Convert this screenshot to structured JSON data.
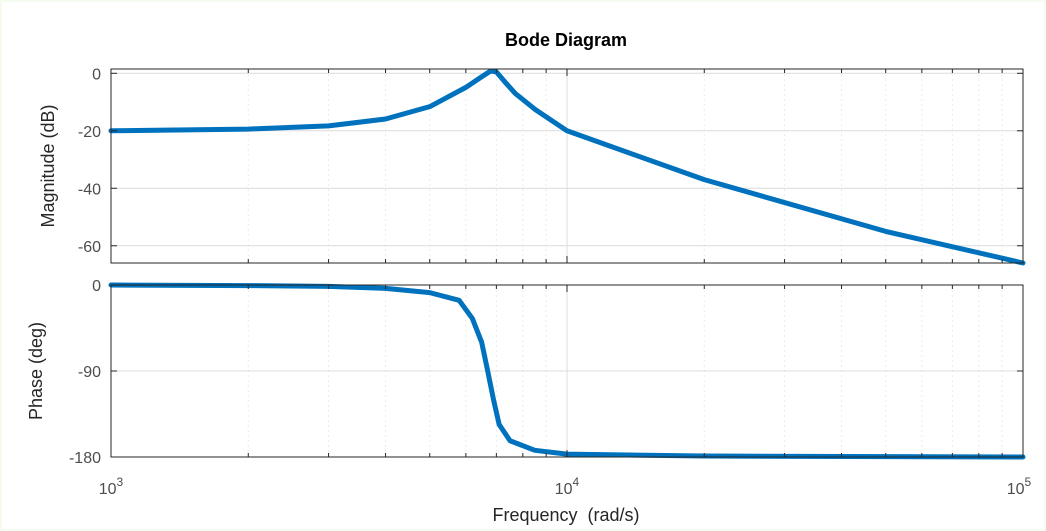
{
  "chart_data": {
    "type": "line",
    "title": "Bode Diagram",
    "xlabel": "Frequency  (rad/s)",
    "xscale": "log",
    "xlim": [
      1000,
      100000
    ],
    "x_ticks": [
      {
        "value": 1000,
        "base": "10",
        "exp": "3"
      },
      {
        "value": 10000,
        "base": "10",
        "exp": "4"
      },
      {
        "value": 100000,
        "base": "10",
        "exp": "5"
      }
    ],
    "grid": true,
    "line_color": "#0072bd",
    "panels": [
      {
        "name": "magnitude",
        "ylabel": "Magnitude (dB)",
        "ylim": [
          -66,
          1.5
        ],
        "yticks": [
          0,
          -20,
          -40,
          -60
        ],
        "ytick_labels": [
          "0",
          "-20",
          "-40",
          "-60"
        ],
        "points": [
          [
            1000,
            -20.0
          ],
          [
            2000,
            -19.4
          ],
          [
            3000,
            -18.3
          ],
          [
            4000,
            -15.9
          ],
          [
            5000,
            -11.6
          ],
          [
            6000,
            -4.9
          ],
          [
            6500,
            -1.2
          ],
          [
            6800,
            0.8
          ],
          [
            7000,
            0.5
          ],
          [
            7300,
            -2.9
          ],
          [
            7700,
            -7.0
          ],
          [
            8500,
            -12.5
          ],
          [
            10000,
            -20.0
          ],
          [
            20000,
            -37.0
          ],
          [
            50000,
            -55.0
          ],
          [
            100000,
            -66.0
          ]
        ]
      },
      {
        "name": "phase",
        "ylabel": "Phase (deg)",
        "ylim": [
          -180,
          0
        ],
        "yticks": [
          0,
          -90,
          -180
        ],
        "ytick_labels": [
          "0",
          "-90",
          "-180"
        ],
        "points": [
          [
            1000,
            0
          ],
          [
            2000,
            -0.6
          ],
          [
            3000,
            -1.5
          ],
          [
            4000,
            -3.5
          ],
          [
            5000,
            -8
          ],
          [
            5800,
            -16
          ],
          [
            6200,
            -35
          ],
          [
            6500,
            -60
          ],
          [
            6700,
            -90
          ],
          [
            6900,
            -120
          ],
          [
            7100,
            -146
          ],
          [
            7500,
            -163
          ],
          [
            8500,
            -173
          ],
          [
            10000,
            -177
          ],
          [
            20000,
            -179
          ],
          [
            100000,
            -180
          ]
        ]
      }
    ]
  }
}
